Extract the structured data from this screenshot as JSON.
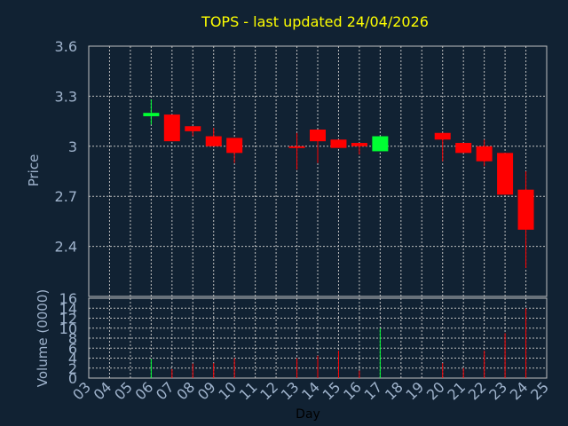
{
  "chart_data": {
    "type": "candlestick",
    "title": "TOPS - last updated 24/04/2026",
    "xlabel": "Day",
    "price_panel": {
      "ylabel": "Price",
      "ylim": [
        2.1,
        3.6
      ],
      "yticks": [
        "3.6",
        "3.3",
        "3",
        "2.7",
        "2.4"
      ],
      "candles": [
        {
          "day": 6,
          "open": 3.18,
          "close": 3.2,
          "high": 3.28,
          "low": 3.13
        },
        {
          "day": 7,
          "open": 3.19,
          "close": 3.03,
          "high": 3.19,
          "low": 3.03
        },
        {
          "day": 8,
          "open": 3.12,
          "close": 3.09,
          "high": 3.12,
          "low": 3.06
        },
        {
          "day": 9,
          "open": 3.06,
          "close": 3.0,
          "high": 3.11,
          "low": 3.0
        },
        {
          "day": 10,
          "open": 3.05,
          "close": 2.96,
          "high": 3.05,
          "low": 2.9
        },
        {
          "day": 13,
          "open": 3.0,
          "close": 2.99,
          "high": 3.08,
          "low": 2.86
        },
        {
          "day": 14,
          "open": 3.1,
          "close": 3.03,
          "high": 3.1,
          "low": 2.9
        },
        {
          "day": 15,
          "open": 3.04,
          "close": 2.99,
          "high": 3.04,
          "low": 2.99
        },
        {
          "day": 16,
          "open": 3.02,
          "close": 3.0,
          "high": 3.02,
          "low": 2.95
        },
        {
          "day": 17,
          "open": 2.97,
          "close": 3.06,
          "high": 3.06,
          "low": 2.97
        },
        {
          "day": 20,
          "open": 3.08,
          "close": 3.04,
          "high": 3.08,
          "low": 2.91
        },
        {
          "day": 21,
          "open": 3.02,
          "close": 2.96,
          "high": 3.02,
          "low": 2.96
        },
        {
          "day": 22,
          "open": 3.0,
          "close": 2.91,
          "high": 3.04,
          "low": 2.88
        },
        {
          "day": 23,
          "open": 2.96,
          "close": 2.71,
          "high": 2.96,
          "low": 2.71
        },
        {
          "day": 24,
          "open": 2.74,
          "close": 2.5,
          "high": 2.85,
          "low": 2.27
        }
      ]
    },
    "volume_panel": {
      "ylabel": "Volume (0000)",
      "ylim": [
        0,
        16
      ],
      "yticks": [
        "16",
        "14",
        "12",
        "10",
        "8",
        "6",
        "4",
        "2",
        "0"
      ],
      "bars": [
        {
          "day": 6,
          "value": 3.8
        },
        {
          "day": 7,
          "value": 1.8
        },
        {
          "day": 8,
          "value": 2.9
        },
        {
          "day": 9,
          "value": 3.0
        },
        {
          "day": 10,
          "value": 4.0
        },
        {
          "day": 13,
          "value": 4.0
        },
        {
          "day": 14,
          "value": 4.5
        },
        {
          "day": 15,
          "value": 5.5
        },
        {
          "day": 16,
          "value": 1.5
        },
        {
          "day": 17,
          "value": 10.0
        },
        {
          "day": 20,
          "value": 3.0
        },
        {
          "day": 21,
          "value": 2.0
        },
        {
          "day": 22,
          "value": 5.5
        },
        {
          "day": 23,
          "value": 9.0
        },
        {
          "day": 24,
          "value": 14.0
        }
      ]
    },
    "x_range": [
      3,
      25
    ],
    "x_ticks": [
      "03",
      "04",
      "05",
      "06",
      "07",
      "08",
      "09",
      "10",
      "11",
      "12",
      "13",
      "14",
      "15",
      "16",
      "17",
      "18",
      "19",
      "20",
      "21",
      "22",
      "23",
      "24",
      "25"
    ],
    "grid": true,
    "colors": {
      "background": "#112233",
      "grid": "#c0c0c0",
      "up": "#00ff33",
      "down": "#ff0000",
      "title": "#ffff00",
      "ticks": "#9fb3cc",
      "xlabel": "#000000"
    }
  }
}
